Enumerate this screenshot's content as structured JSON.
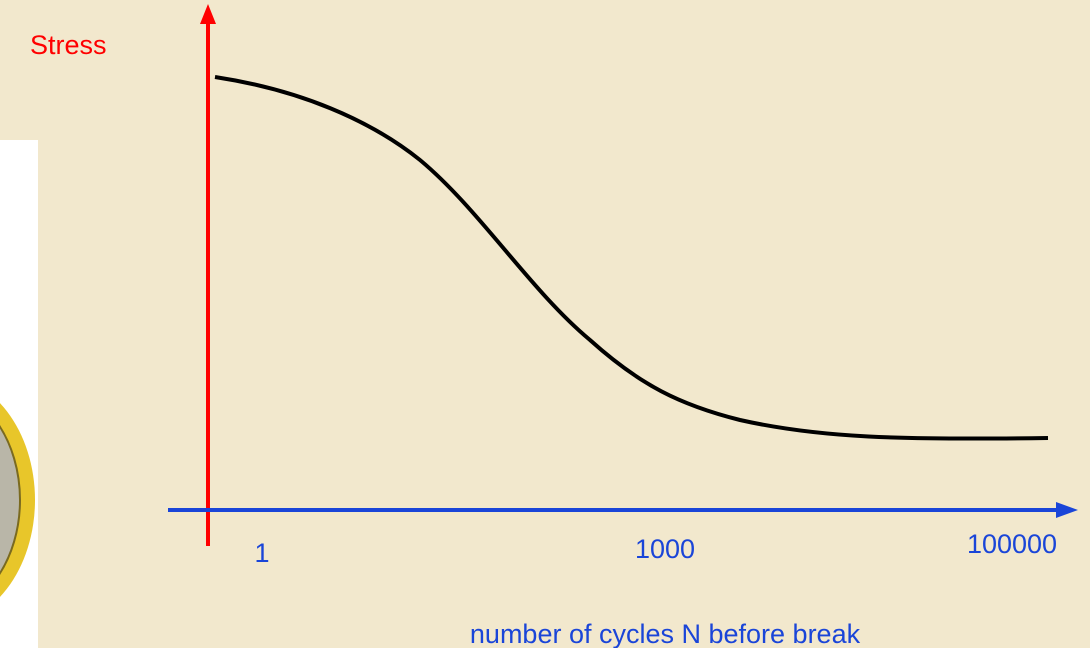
{
  "axes": {
    "y_label": "Stress",
    "x_label": "number of cycles N before break",
    "x_tick_labels": [
      "1",
      "1000",
      "100000"
    ]
  }
}
